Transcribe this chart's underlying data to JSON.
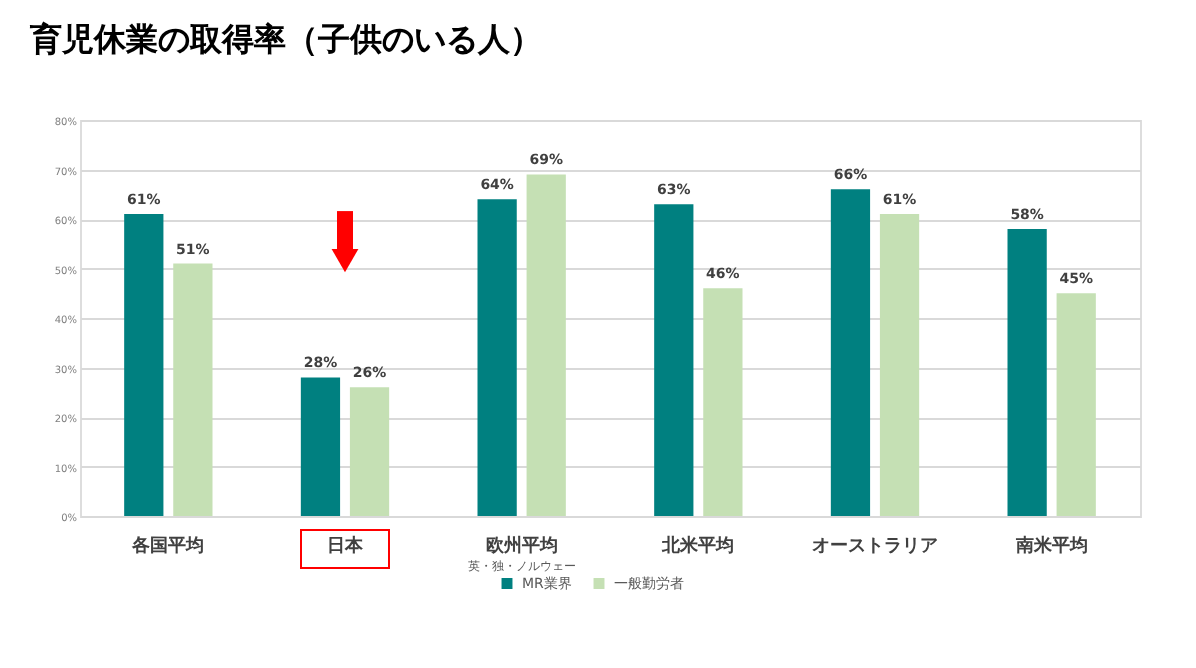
{
  "chart_data": {
    "type": "bar",
    "title": "育児休業の取得率（子供のいる人）",
    "categories": [
      "各国平均",
      "日本",
      "欧州平均",
      "北米平均",
      "オーストラリア",
      "南米平均"
    ],
    "series": [
      {
        "name": "MR業界",
        "color": "#008080",
        "values": [
          61,
          28,
          64,
          63,
          66,
          58
        ]
      },
      {
        "name": "一般勤労者",
        "color": "#c5e0b4",
        "values": [
          51,
          26,
          69,
          46,
          61,
          45
        ]
      }
    ],
    "value_labels": [
      [
        "61%",
        "28%",
        "64%",
        "63%",
        "66%",
        "58%"
      ],
      [
        "51%",
        "26%",
        "69%",
        "46%",
        "61%",
        "45%"
      ]
    ],
    "annotations": [
      "英・独・ノルウェー"
    ],
    "ylim": [
      0,
      80
    ],
    "yticks": [
      {
        "value": 0,
        "label": "0%"
      },
      {
        "value": 10,
        "label": "10%"
      },
      {
        "value": 20,
        "label": "20%"
      },
      {
        "value": 30,
        "label": "30%"
      },
      {
        "value": 40,
        "label": "40%"
      },
      {
        "value": 50,
        "label": "50%"
      },
      {
        "value": 60,
        "label": "60%"
      },
      {
        "value": 70,
        "label": "70%"
      },
      {
        "value": 80,
        "label": "80%"
      }
    ],
    "grid": "y",
    "legend": "bottom"
  }
}
